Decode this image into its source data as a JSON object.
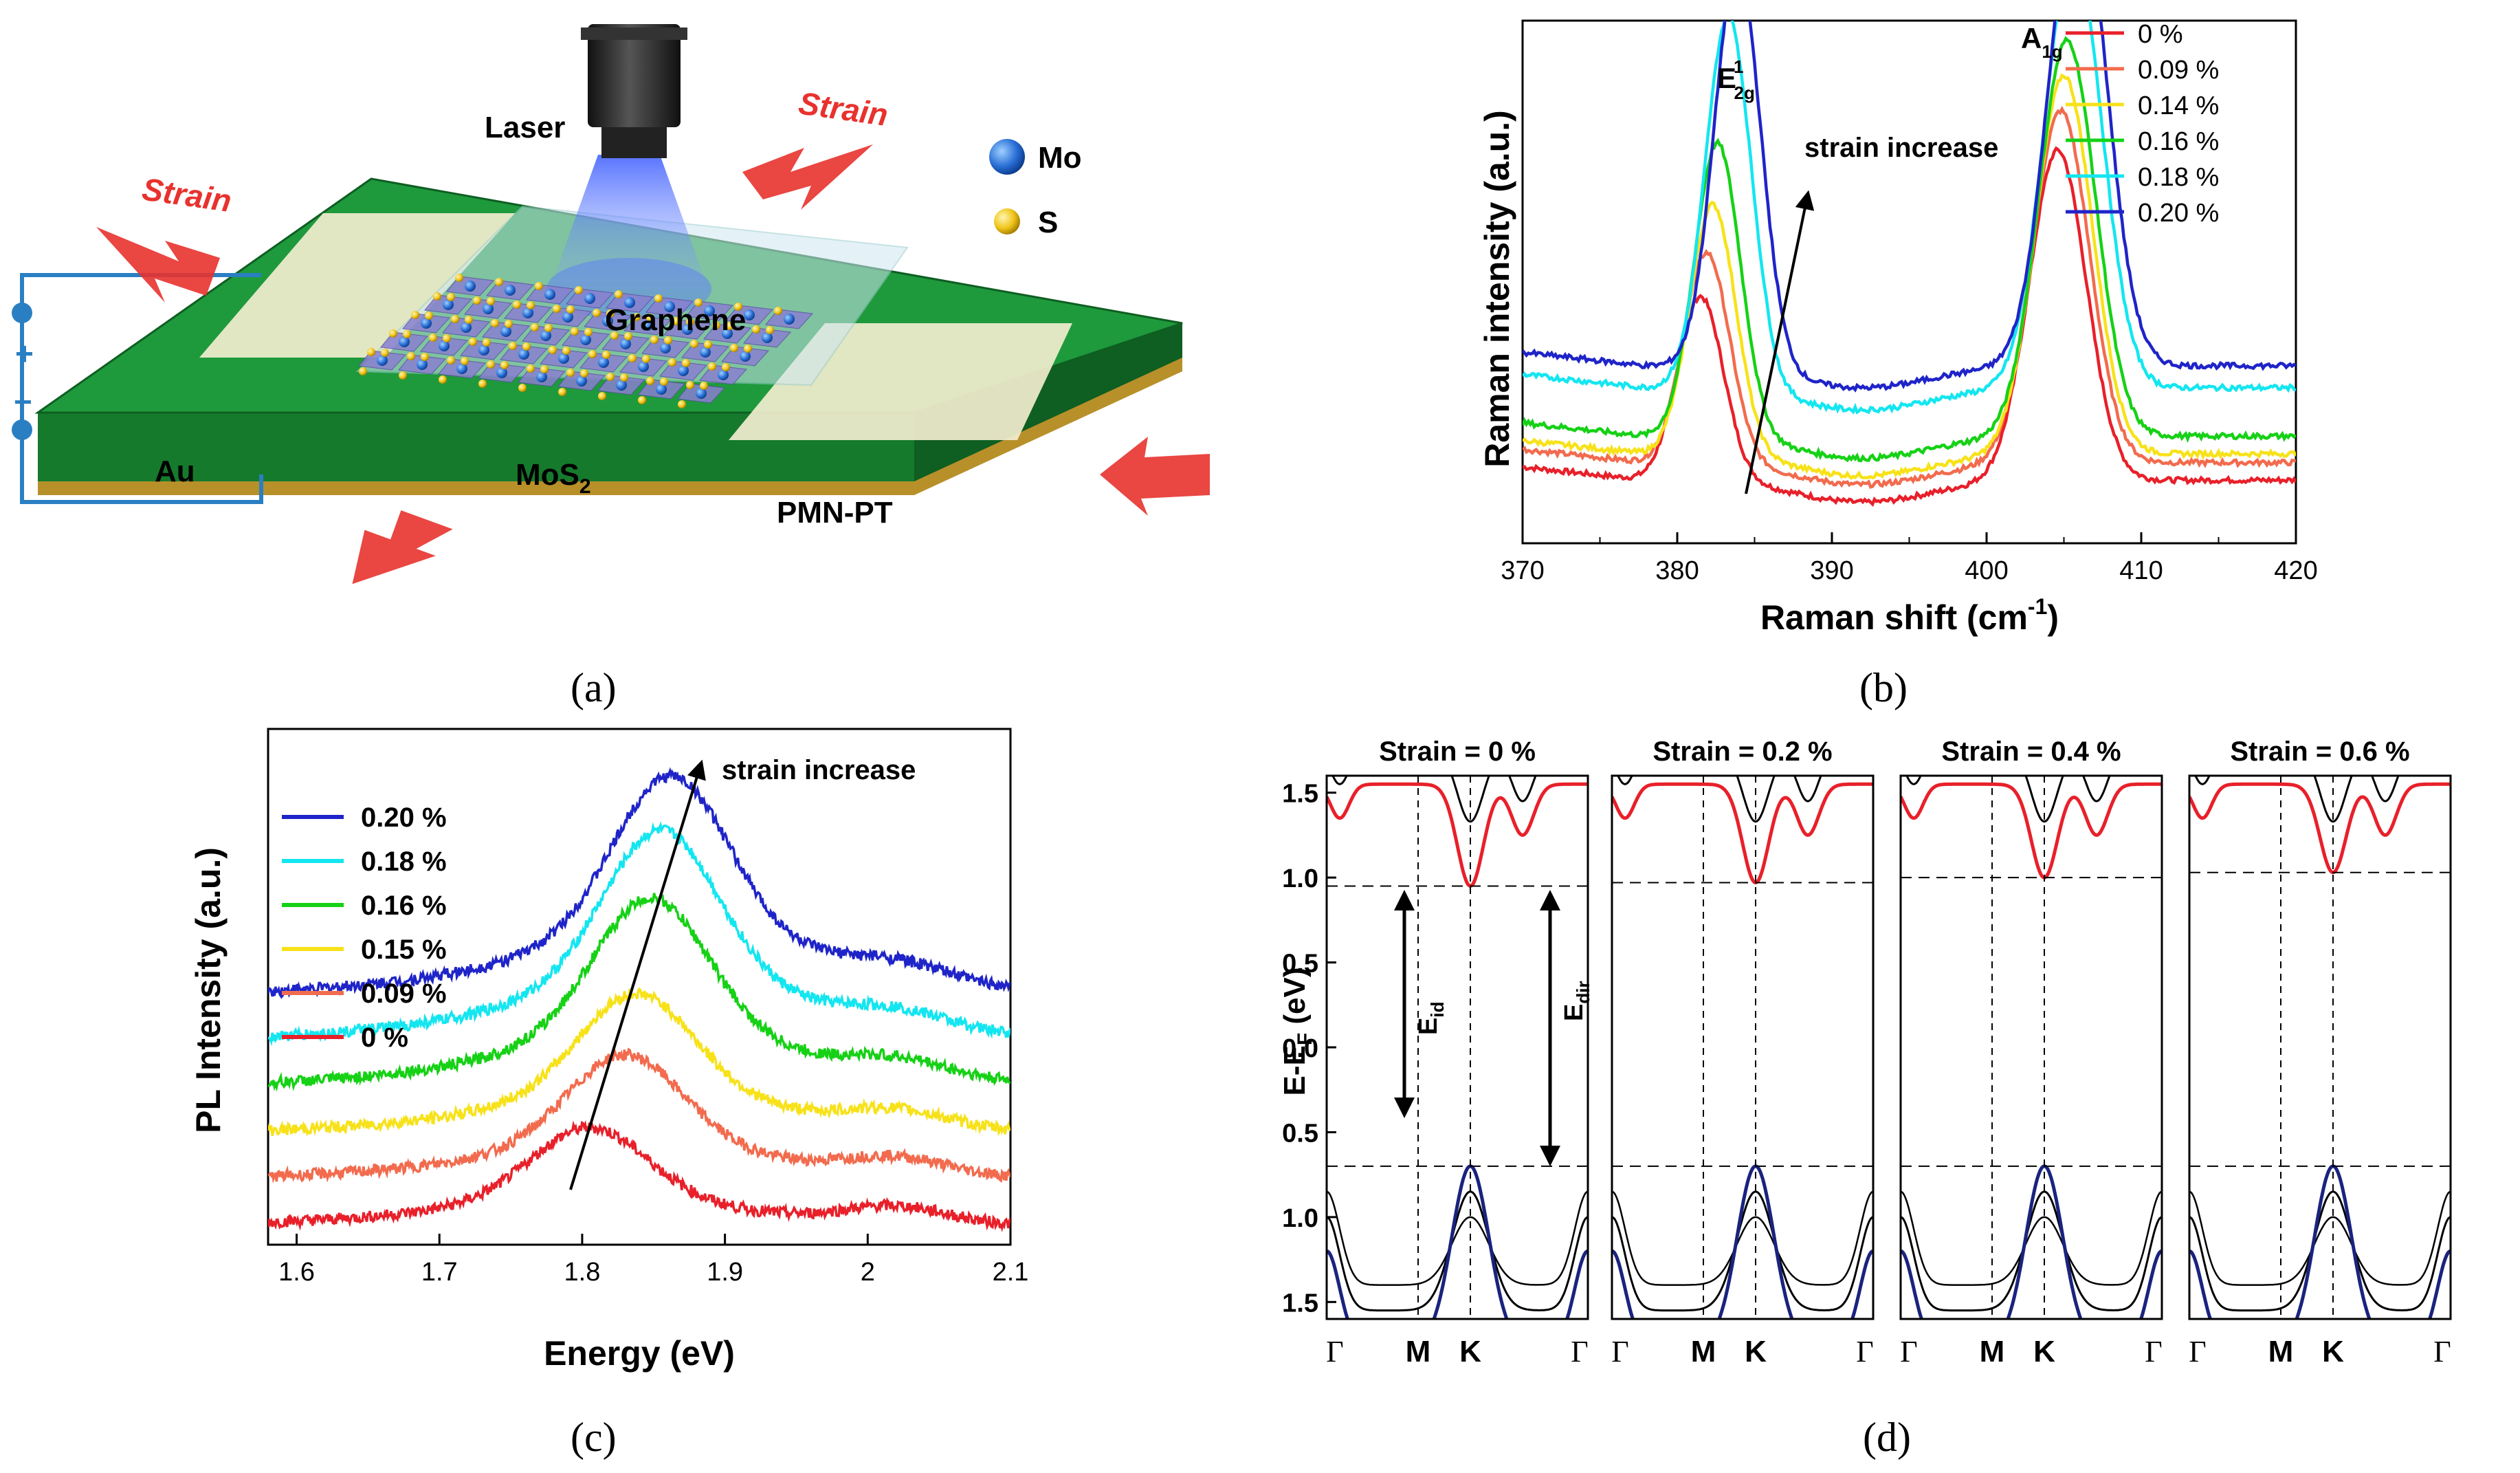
{
  "panels": {
    "a": {
      "caption": "(a)",
      "labels": {
        "laser": "Laser",
        "strain_left": "Strain",
        "strain_right": "Strain",
        "graphene": "Graphene",
        "mos2": "MoS",
        "mos2_sub": "2",
        "au": "Au",
        "pmnpt": "PMN-PT",
        "plus": "+",
        "minus": "−",
        "legend_mo": "Mo",
        "legend_s": "S"
      },
      "colors": {
        "substrate_top": "#1e9a3c",
        "substrate_side": "#157a2c",
        "gold": "#b8902a",
        "arrow": "#e8322e",
        "mo": "#2a6fd6",
        "s": "#f0c419",
        "circuit": "#2a7fc2"
      }
    },
    "b": {
      "caption": "(b)",
      "chart_data": {
        "type": "line",
        "title": "",
        "xlabel": "Raman shift (cm",
        "xlabel_sup": "-1",
        "xlabel_end": ")",
        "ylabel": "Raman intensity (a.u.)",
        "xlim": [
          370,
          420
        ],
        "xticks": [
          370,
          380,
          390,
          400,
          410,
          420
        ],
        "peak_labels": {
          "e2g": "E",
          "e2g_sup": "1",
          "e2g_sub": "2g",
          "a1g": "A",
          "a1g_sub": "1g"
        },
        "annotation": "strain increase",
        "series": [
          {
            "name": "0 %",
            "color": "#e8202a",
            "base": 0.12,
            "p1": {
              "x": 381.5,
              "h": 0.42
            },
            "p2": {
              "x": 404.6,
              "h": 0.75
            }
          },
          {
            "name": "0.09 %",
            "color": "#f26b4e",
            "base": 0.16,
            "p1": {
              "x": 381.9,
              "h": 0.48
            },
            "p2": {
              "x": 404.8,
              "h": 0.8
            }
          },
          {
            "name": "0.14 %",
            "color": "#f7e21a",
            "base": 0.18,
            "p1": {
              "x": 382.3,
              "h": 0.57
            },
            "p2": {
              "x": 405.0,
              "h": 0.86
            }
          },
          {
            "name": "0.16 %",
            "color": "#16d116",
            "base": 0.22,
            "p1": {
              "x": 382.6,
              "h": 0.67
            },
            "p2": {
              "x": 405.2,
              "h": 0.9
            }
          },
          {
            "name": "0.18 %",
            "color": "#14e6f0",
            "base": 0.33,
            "p1": {
              "x": 383.3,
              "h": 0.85
            },
            "p2": {
              "x": 405.6,
              "h": 1.0
            }
          },
          {
            "name": "0.20 %",
            "color": "#1f24c8",
            "base": 0.38,
            "p1": {
              "x": 383.9,
              "h": 0.92
            },
            "p2": {
              "x": 405.9,
              "h": 1.09
            }
          }
        ]
      }
    },
    "c": {
      "caption": "(c)",
      "chart_data": {
        "type": "line",
        "xlabel": "Energy (eV)",
        "ylabel": "PL Intensity (a.u.)",
        "xlim": [
          1.58,
          2.1
        ],
        "xticks": [
          1.6,
          1.7,
          1.8,
          1.9,
          2.0,
          2.1
        ],
        "annotation": "strain increase",
        "series": [
          {
            "name": "0.20 %",
            "color": "#1f24c8",
            "offset": 5,
            "center": 1.862,
            "amp": 1.0
          },
          {
            "name": "0.18 %",
            "color": "#14e6f0",
            "offset": 4,
            "center": 1.855,
            "amp": 0.96
          },
          {
            "name": "0.16 %",
            "color": "#16d116",
            "offset": 3,
            "center": 1.848,
            "amp": 0.86
          },
          {
            "name": "0.15 %",
            "color": "#f7e21a",
            "offset": 2,
            "center": 1.838,
            "amp": 0.64
          },
          {
            "name": "0.09 %",
            "color": "#f26b4e",
            "offset": 1,
            "center": 1.83,
            "amp": 0.57
          },
          {
            "name": "0 %",
            "color": "#e8202a",
            "offset": 0,
            "center": 1.805,
            "amp": 0.45
          }
        ]
      }
    },
    "d": {
      "caption": "(d)",
      "chart_data": {
        "type": "line",
        "ylabel": "E-E",
        "ylabel_sub": "F",
        "ylabel_end": " (eV)",
        "yticks": [
          "1.5",
          "1.0",
          "0.5",
          "0.0",
          "0.5",
          "1.0",
          "1.5"
        ],
        "kpoints": [
          "Γ",
          "M",
          "K",
          "Γ"
        ],
        "arrow_labels": {
          "eid": "E",
          "eid_sub": "id",
          "edir": "E",
          "edir_sub": "dir"
        },
        "subplots": [
          {
            "title": "Strain = 0 %",
            "cbm_shift": 0.0
          },
          {
            "title": "Strain = 0.2 %",
            "cbm_shift": 0.02
          },
          {
            "title": "Strain = 0.4 %",
            "cbm_shift": 0.05
          },
          {
            "title": "Strain = 0.6 %",
            "cbm_shift": 0.08
          }
        ]
      }
    }
  }
}
